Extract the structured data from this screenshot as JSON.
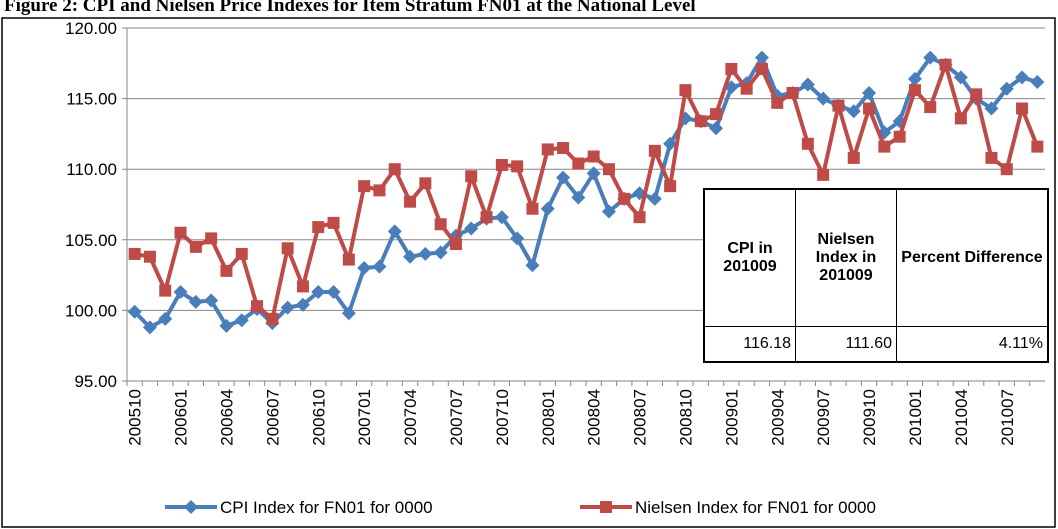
{
  "chart_data": {
    "type": "line",
    "title": "Figure 2: CPI and Nielsen Price Indexes for Item Stratum FN01 at the National Level",
    "categories": [
      "200510",
      null,
      null,
      "200601",
      null,
      null,
      "200604",
      null,
      null,
      "200607",
      null,
      null,
      "200610",
      null,
      null,
      "200701",
      null,
      null,
      "200704",
      null,
      null,
      "200707",
      null,
      null,
      "200710",
      null,
      null,
      "200801",
      null,
      null,
      "200804",
      null,
      null,
      "200807",
      null,
      null,
      "200810",
      null,
      null,
      "200901",
      null,
      null,
      "200904",
      null,
      null,
      "200907",
      null,
      null,
      "200910",
      null,
      null,
      "201001",
      null,
      null,
      "201004",
      null,
      null,
      "201007",
      null,
      null
    ],
    "series": [
      {
        "name": "CPI Index for FN01 for 0000",
        "color": "#4a7ebb",
        "marker": "diamond",
        "values": [
          99.9,
          98.8,
          99.4,
          101.3,
          100.6,
          100.7,
          98.9,
          99.3,
          100.1,
          99.1,
          100.2,
          100.4,
          101.3,
          101.3,
          99.8,
          103.0,
          103.1,
          105.6,
          103.8,
          104.0,
          104.1,
          105.3,
          105.8,
          106.5,
          106.6,
          105.1,
          103.2,
          107.2,
          109.4,
          108.0,
          109.7,
          107.0,
          107.9,
          108.3,
          107.9,
          111.8,
          113.6,
          113.4,
          112.9,
          115.8,
          116.1,
          117.9,
          115.2,
          115.4,
          116.0,
          115.0,
          114.5,
          114.1,
          115.4,
          112.6,
          113.4,
          116.4,
          117.9,
          117.4,
          116.5,
          115.0,
          114.3,
          115.7,
          116.5,
          116.18
        ]
      },
      {
        "name": "Nielsen Index for FN01 for 0000",
        "color": "#be4b48",
        "marker": "square",
        "values": [
          104.0,
          103.8,
          101.4,
          105.5,
          104.5,
          105.1,
          102.8,
          104.0,
          100.3,
          99.4,
          104.4,
          101.7,
          105.9,
          106.2,
          103.6,
          108.8,
          108.5,
          110.0,
          107.7,
          109.0,
          106.1,
          104.7,
          109.5,
          106.6,
          110.3,
          110.2,
          107.2,
          111.4,
          111.5,
          110.4,
          110.9,
          110.0,
          107.9,
          106.6,
          111.3,
          108.8,
          115.6,
          113.4,
          113.9,
          117.1,
          115.7,
          117.1,
          114.7,
          115.4,
          111.8,
          109.6,
          114.5,
          110.8,
          114.3,
          111.6,
          112.3,
          115.6,
          114.4,
          117.4,
          113.6,
          115.3,
          110.8,
          110.0,
          114.3,
          111.6
        ]
      }
    ],
    "ylim": [
      95,
      120
    ],
    "yticks": [
      {
        "value": 95,
        "label": "95.00"
      },
      {
        "value": 100,
        "label": "100.00"
      },
      {
        "value": 105,
        "label": "105.00"
      },
      {
        "value": 110,
        "label": "110.00"
      },
      {
        "value": 115,
        "label": "115.00"
      },
      {
        "value": 120,
        "label": "120.00"
      }
    ],
    "grid": true,
    "legend": "bottom",
    "inset_table": {
      "headers": [
        "CPI in 201009",
        "Nielsen Index in 201009",
        "Percent Difference"
      ],
      "cells": [
        "116.18",
        "111.60",
        "4.11%"
      ]
    }
  }
}
